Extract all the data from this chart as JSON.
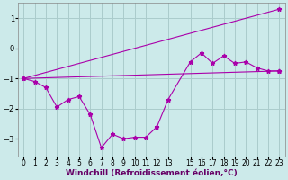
{
  "background_color": "#cceaea",
  "grid_color": "#aacccc",
  "line_color": "#aa00aa",
  "xlim": [
    -0.5,
    23.5
  ],
  "ylim": [
    -3.6,
    1.5
  ],
  "yticks": [
    -3,
    -2,
    -1,
    0,
    1
  ],
  "xlabel": "Windchill (Refroidissement éolien,°C)",
  "xlabel_fontsize": 6.5,
  "tick_fontsize": 6,
  "series1_x": [
    0,
    1,
    2,
    3,
    4,
    5,
    6,
    7,
    8,
    9,
    10,
    11,
    12,
    13,
    15,
    16,
    17,
    18,
    19,
    20,
    21,
    22,
    23
  ],
  "series1_y": [
    -1.0,
    -1.1,
    -1.3,
    -1.95,
    -1.7,
    -1.6,
    -2.2,
    -3.3,
    -2.85,
    -3.0,
    -2.95,
    -2.95,
    -2.6,
    -1.7,
    -0.45,
    -0.15,
    -0.5,
    -0.25,
    -0.5,
    -0.45,
    -0.65,
    -0.75,
    -0.75
  ],
  "series2_x": [
    0,
    23
  ],
  "series2_y": [
    -1.0,
    1.3
  ],
  "series3_x": [
    0,
    23
  ],
  "series3_y": [
    -1.0,
    -0.75
  ],
  "xtick_positions": [
    0,
    1,
    2,
    3,
    4,
    5,
    6,
    7,
    8,
    9,
    10,
    11,
    12,
    13,
    15,
    16,
    17,
    18,
    19,
    20,
    21,
    22,
    23
  ],
  "xtick_labels": [
    "0",
    "1",
    "2",
    "3",
    "4",
    "5",
    "6",
    "7",
    "8",
    "9",
    "10",
    "11",
    "12",
    "13",
    "15",
    "16",
    "17",
    "18",
    "19",
    "20",
    "21",
    "22",
    "23"
  ]
}
